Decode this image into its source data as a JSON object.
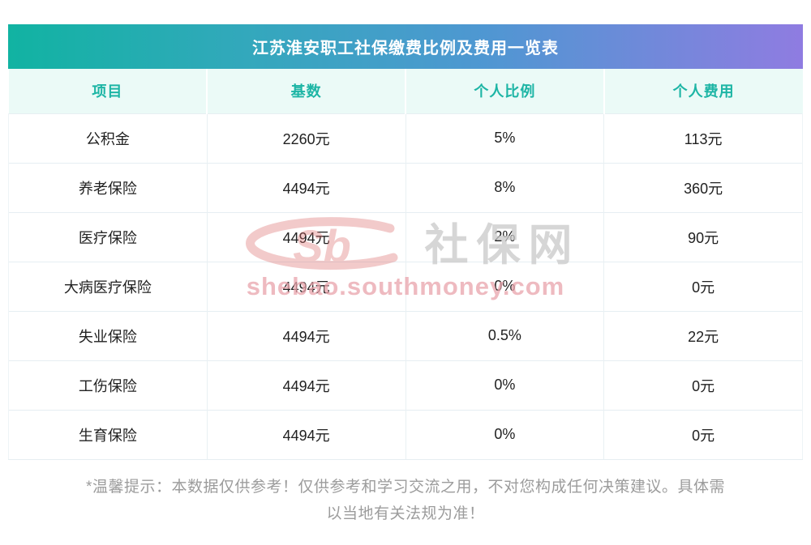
{
  "title": "江苏淮安职工社保缴费比例及费用一览表",
  "table": {
    "headers": [
      "项目",
      "基数",
      "个人比例",
      "个人费用"
    ],
    "rows": [
      [
        "公积金",
        "2260元",
        "5%",
        "113元"
      ],
      [
        "养老保险",
        "4494元",
        "8%",
        "360元"
      ],
      [
        "医疗保险",
        "4494元",
        "2%",
        "90元"
      ],
      [
        "大病医疗保险",
        "4494元",
        "0%",
        "0元"
      ],
      [
        "失业保险",
        "4494元",
        "0.5%",
        "22元"
      ],
      [
        "工伤保险",
        "4494元",
        "0%",
        "0元"
      ],
      [
        "生育保险",
        "4494元",
        "0%",
        "0元"
      ]
    ]
  },
  "watermark": {
    "logo_text": "Sb",
    "brand_text": "社保网",
    "domain_text": "shebao.southmoney.com"
  },
  "footer": {
    "note_line1": "*温馨提示：本数据仅供参考！仅供参考和学习交流之用，不对您构成任何决策建议。具体需",
    "note_line2": "以当地有关法规为准！"
  },
  "colors": {
    "title_gradient_start": "#11b3a2",
    "title_gradient_end": "#8f7ce1",
    "header_bg": "#ebfaf7",
    "header_text": "#1db5a5",
    "row_border": "#e6eef2",
    "body_text": "#212121",
    "footer_text": "#9c9c9c",
    "watermark_pink": "#e9a3ab",
    "watermark_red": "#dc6a6a"
  },
  "chart_data": {
    "type": "table",
    "title": "江苏淮安职工社保缴费比例及费用一览表",
    "columns": [
      "项目",
      "基数",
      "个人比例",
      "个人费用"
    ],
    "rows": [
      {
        "项目": "公积金",
        "基数": "2260元",
        "个人比例": "5%",
        "个人费用": "113元"
      },
      {
        "项目": "养老保险",
        "基数": "4494元",
        "个人比例": "8%",
        "个人费用": "360元"
      },
      {
        "项目": "医疗保险",
        "基数": "4494元",
        "个人比例": "2%",
        "个人费用": "90元"
      },
      {
        "项目": "大病医疗保险",
        "基数": "4494元",
        "个人比例": "0%",
        "个人费用": "0元"
      },
      {
        "项目": "失业保险",
        "基数": "4494元",
        "个人比例": "0.5%",
        "个人费用": "22元"
      },
      {
        "项目": "工伤保险",
        "基数": "4494元",
        "个人比例": "0%",
        "个人费用": "0元"
      },
      {
        "项目": "生育保险",
        "基数": "4494元",
        "个人比例": "0%",
        "个人费用": "0元"
      }
    ]
  }
}
